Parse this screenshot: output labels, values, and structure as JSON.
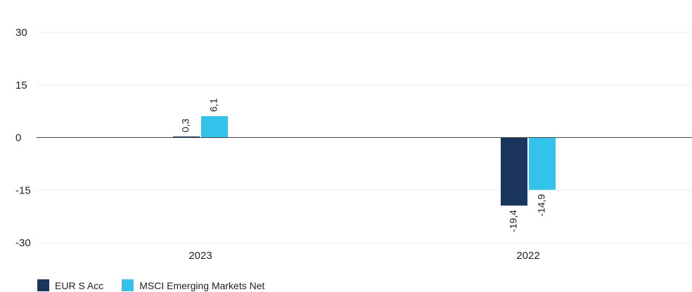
{
  "chart_data": {
    "type": "bar",
    "categories": [
      "2023",
      "2022"
    ],
    "series": [
      {
        "name": "EUR S Acc",
        "values": [
          0.3,
          -19.4
        ],
        "labels": [
          "0,3",
          "-19,4"
        ],
        "color": "#1a355e"
      },
      {
        "name": "MSCI Emerging Markets Net",
        "values": [
          6.1,
          -14.9
        ],
        "labels": [
          "6,1",
          "-14,9"
        ],
        "color": "#33c3ea"
      }
    ],
    "y_ticks": [
      30,
      15,
      0,
      -15,
      -30
    ],
    "y_tick_labels": [
      "30",
      "15",
      "0",
      "-15",
      "-30"
    ],
    "ylim": [
      -30,
      30
    ],
    "grid": true,
    "legend_position": "bottom-left"
  }
}
